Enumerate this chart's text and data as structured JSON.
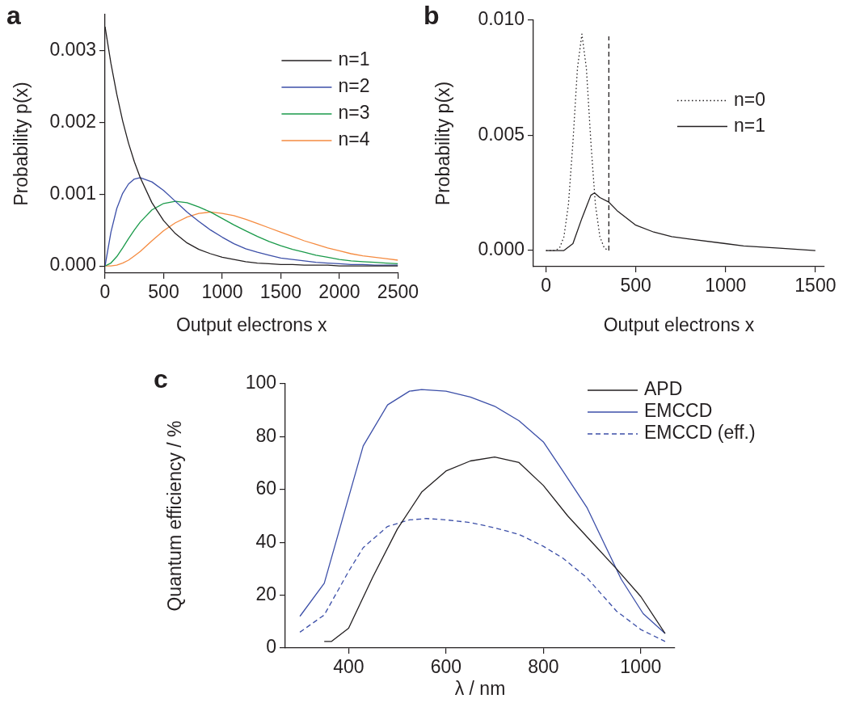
{
  "chart_data": [
    {
      "type": "line",
      "title": "a",
      "xlabel": "Output electrons x",
      "ylabel": "Probability p(x)",
      "xlim": [
        0,
        2500
      ],
      "ylim": [
        -0.0001,
        0.0035
      ],
      "xticks": [
        0,
        500,
        1000,
        1500,
        2000,
        2500
      ],
      "yticks": [
        {
          "value": 0,
          "label": "0.000"
        },
        {
          "value": 0.001,
          "label": "0.001"
        },
        {
          "value": 0.002,
          "label": "0.002"
        },
        {
          "value": 0.003,
          "label": "0.003"
        }
      ],
      "legend": "top right",
      "x": [
        0,
        50,
        100,
        150,
        200,
        250,
        300,
        400,
        500,
        600,
        700,
        800,
        900,
        1000,
        1100,
        1200,
        1300,
        1400,
        1500,
        1600,
        1700,
        1800,
        1900,
        2000,
        2100,
        2200,
        2300,
        2400,
        2500
      ],
      "series": [
        {
          "name": "n=1",
          "color": "#231f20",
          "values": [
            0.00333,
            0.00282,
            0.00239,
            0.00202,
            0.00171,
            0.00145,
            0.00123,
            0.00088,
            0.00063,
            0.00045,
            0.00032,
            0.00023,
            0.00017,
            0.00012,
            9e-05,
            6e-05,
            4e-05,
            3e-05,
            2e-05,
            2e-05,
            1e-05,
            1e-05,
            1e-05,
            0,
            0,
            0,
            0,
            0,
            0
          ]
        },
        {
          "name": "n=2",
          "color": "#3c4fa8",
          "values": [
            0,
            0.00047,
            0.0008,
            0.00101,
            0.00114,
            0.00121,
            0.00123,
            0.00117,
            0.00105,
            0.0009,
            0.00075,
            0.00062,
            0.0005,
            0.0004,
            0.00031,
            0.00024,
            0.00019,
            0.00015,
            0.00011,
            9e-05,
            7e-05,
            5e-05,
            4e-05,
            3e-05,
            2e-05,
            2e-05,
            1e-05,
            1e-05,
            1e-05
          ]
        },
        {
          "name": "n=3",
          "color": "#1a9a4a",
          "values": [
            0,
            4e-05,
            0.00013,
            0.00025,
            0.00038,
            0.0005,
            0.00061,
            0.00078,
            0.00087,
            0.0009,
            0.00088,
            0.00082,
            0.00075,
            0.00066,
            0.00057,
            0.00049,
            0.00041,
            0.00034,
            0.00028,
            0.00023,
            0.00019,
            0.00015,
            0.00012,
            9e-05,
            7e-05,
            6e-05,
            5e-05,
            4e-05,
            3e-05
          ]
        },
        {
          "name": "n=4",
          "color": "#f58b40",
          "values": [
            0,
            0,
            1e-05,
            4e-05,
            8e-05,
            0.00014,
            0.0002,
            0.00035,
            0.00049,
            0.0006,
            0.00068,
            0.00073,
            0.00075,
            0.00073,
            0.0007,
            0.00065,
            0.00059,
            0.00053,
            0.00047,
            0.00041,
            0.00035,
            0.0003,
            0.00025,
            0.00021,
            0.00017,
            0.00014,
            0.00012,
            0.0001,
            8e-05
          ]
        }
      ]
    },
    {
      "type": "line",
      "title": "b",
      "xlabel": "Output electrons x",
      "ylabel": "Probability p(x)",
      "xlim": [
        -70,
        1550
      ],
      "ylim": [
        -0.0007,
        0.01
      ],
      "xticks": [
        0,
        500,
        1000,
        1500
      ],
      "yticks": [
        {
          "value": 0,
          "label": "0.000"
        },
        {
          "value": 0.005,
          "label": "0.005"
        },
        {
          "value": 0.01,
          "label": "0.010"
        }
      ],
      "legend": "right",
      "series": [
        {
          "name": "n=0",
          "color": "#231f20",
          "line_style": "dotted",
          "x": [
            0,
            50,
            75,
            100,
            125,
            150,
            175,
            200,
            225,
            250,
            275,
            300,
            325,
            350
          ],
          "values": [
            0,
            0,
            0.0001,
            0.0006,
            0.002,
            0.0047,
            0.0079,
            0.0094,
            0.0079,
            0.0047,
            0.002,
            0.0006,
            0.0001,
            0
          ]
        },
        {
          "name": "n=1",
          "color": "#231f20",
          "x": [
            0,
            100,
            150,
            200,
            250,
            270,
            300,
            350,
            400,
            500,
            600,
            700,
            800,
            1000,
            1100,
            1300,
            1500
          ],
          "values": [
            0,
            0,
            0.0003,
            0.0014,
            0.0024,
            0.0025,
            0.0023,
            0.0021,
            0.0017,
            0.0011,
            0.0008,
            0.0006,
            0.0005,
            0.0003,
            0.0002,
            0.0001,
            0
          ]
        },
        {
          "color": "#231f20",
          "line_style": "dashed",
          "x": [
            350,
            350
          ],
          "values": [
            0,
            0.0093
          ]
        }
      ]
    },
    {
      "type": "line",
      "title": "c",
      "xlabel": "λ / nm",
      "ylabel": "Quantum efficiency / %",
      "xlim": [
        270,
        1070
      ],
      "ylim": [
        0,
        100
      ],
      "xticks": [
        400,
        600,
        800,
        1000
      ],
      "yticks": [
        0,
        20,
        40,
        60,
        80,
        100
      ],
      "legend": "top right",
      "series": [
        {
          "name": "APD",
          "color": "#231f20",
          "x": [
            350,
            365,
            400,
            450,
            500,
            550,
            600,
            650,
            700,
            750,
            800,
            850,
            900,
            950,
            1000,
            1050
          ],
          "values": [
            2.5,
            2.5,
            7.5,
            27,
            45,
            59,
            67,
            70.8,
            72.3,
            70.2,
            61.5,
            50,
            40,
            30,
            19.5,
            5.5
          ]
        },
        {
          "name": "EMCCD",
          "color": "#3c4fa8",
          "x": [
            300,
            350,
            400,
            430,
            480,
            525,
            550,
            600,
            650,
            700,
            750,
            800,
            840,
            890,
            960,
            1005,
            1050
          ],
          "values": [
            12,
            24.5,
            57,
            76.5,
            92,
            97.2,
            97.8,
            97.2,
            95,
            91.5,
            86,
            78,
            67,
            53,
            26,
            13,
            5.5
          ]
        },
        {
          "name": "EMCCD (eff.)",
          "color": "#3c4fa8",
          "line_style": "dashed",
          "x": [
            300,
            350,
            400,
            430,
            480,
            525,
            560,
            600,
            650,
            700,
            750,
            800,
            840,
            890,
            950,
            1000,
            1050
          ],
          "values": [
            6,
            12.5,
            29,
            38,
            46,
            48.5,
            49,
            48.5,
            47.5,
            45.5,
            43,
            38.5,
            34,
            26.5,
            14,
            7,
            2.5
          ]
        }
      ]
    }
  ]
}
